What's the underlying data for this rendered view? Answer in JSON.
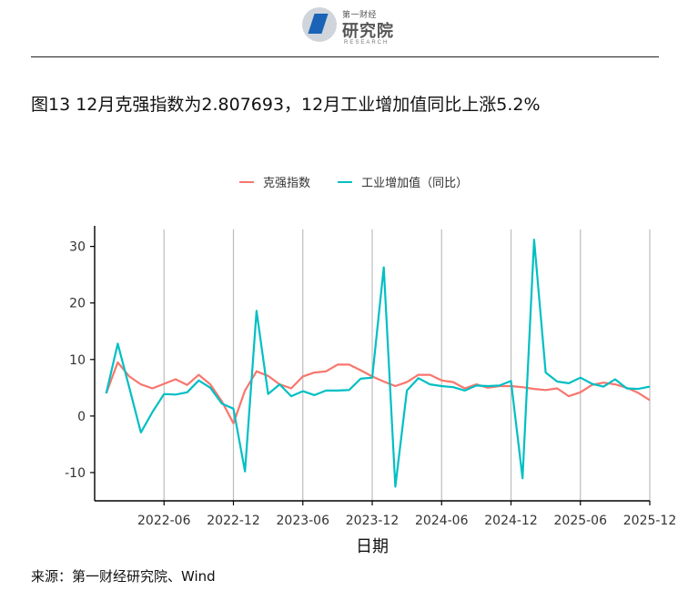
{
  "header": {
    "logo_small": "第一财经",
    "logo_big": "研究院",
    "logo_en": "RESEARCH"
  },
  "title": "图13 12月克强指数为2.807693，12月工业增加值同比上涨5.2%",
  "source": "来源：第一财经研究院、Wind",
  "colors": {
    "series_a": "#f8766d",
    "series_b": "#00bfc4",
    "grid": "#bdbdbd",
    "axis": "#000000"
  },
  "chart_data": {
    "type": "line",
    "xlabel": "日期",
    "ylabel": "",
    "x_ticks": [
      "2022-06",
      "2022-12",
      "2023-06",
      "2023-12",
      "2024-06",
      "2024-12",
      "2025-06",
      "2025-12"
    ],
    "y_ticks": [
      -10,
      0,
      10,
      20,
      30
    ],
    "xlim": [
      "2021-12",
      "2025-12"
    ],
    "ylim": [
      -15,
      33
    ],
    "grid": "vertical",
    "legend_position": "top",
    "x": [
      "2022-01",
      "2022-02",
      "2022-03",
      "2022-04",
      "2022-05",
      "2022-06",
      "2022-07",
      "2022-08",
      "2022-09",
      "2022-10",
      "2022-11",
      "2022-12",
      "2023-01",
      "2023-02",
      "2023-03",
      "2023-04",
      "2023-05",
      "2023-06",
      "2023-07",
      "2023-08",
      "2023-09",
      "2023-10",
      "2023-11",
      "2023-12",
      "2024-01",
      "2024-02",
      "2024-03",
      "2024-04",
      "2024-05",
      "2024-06",
      "2024-07",
      "2024-08",
      "2024-09",
      "2024-10",
      "2024-11",
      "2024-12",
      "2025-01",
      "2025-02",
      "2025-03",
      "2025-04",
      "2025-05",
      "2025-06",
      "2025-07",
      "2025-08",
      "2025-09",
      "2025-10",
      "2025-11",
      "2025-12"
    ],
    "series": [
      {
        "name": "克强指数",
        "values": [
          4.0,
          9.5,
          7.0,
          5.6,
          4.9,
          5.7,
          6.5,
          5.5,
          7.3,
          5.6,
          2.6,
          -1.3,
          4.5,
          7.9,
          7.1,
          5.6,
          4.9,
          7.0,
          7.7,
          7.9,
          9.1,
          9.1,
          8.1,
          7.0,
          6.1,
          5.3,
          6.0,
          7.3,
          7.3,
          6.3,
          6.0,
          4.9,
          5.6,
          5.0,
          5.3,
          5.3,
          5.1,
          4.8,
          4.6,
          4.9,
          3.5,
          4.2,
          5.5,
          5.9,
          5.6,
          5.0,
          4.1,
          2.81
        ]
      },
      {
        "name": "工业增加值（同比）",
        "values": [
          4.0,
          12.8,
          5.0,
          -2.9,
          0.7,
          3.9,
          3.8,
          4.2,
          6.3,
          5.0,
          2.2,
          1.3,
          -9.8,
          18.6,
          3.9,
          5.6,
          3.5,
          4.4,
          3.7,
          4.5,
          4.5,
          4.6,
          6.6,
          6.8,
          26.3,
          -12.5,
          4.5,
          6.7,
          5.6,
          5.3,
          5.1,
          4.5,
          5.4,
          5.3,
          5.4,
          6.2,
          -11.0,
          31.2,
          7.7,
          6.1,
          5.8,
          6.8,
          5.7,
          5.2,
          6.5,
          4.9,
          4.8,
          5.2
        ]
      }
    ]
  }
}
